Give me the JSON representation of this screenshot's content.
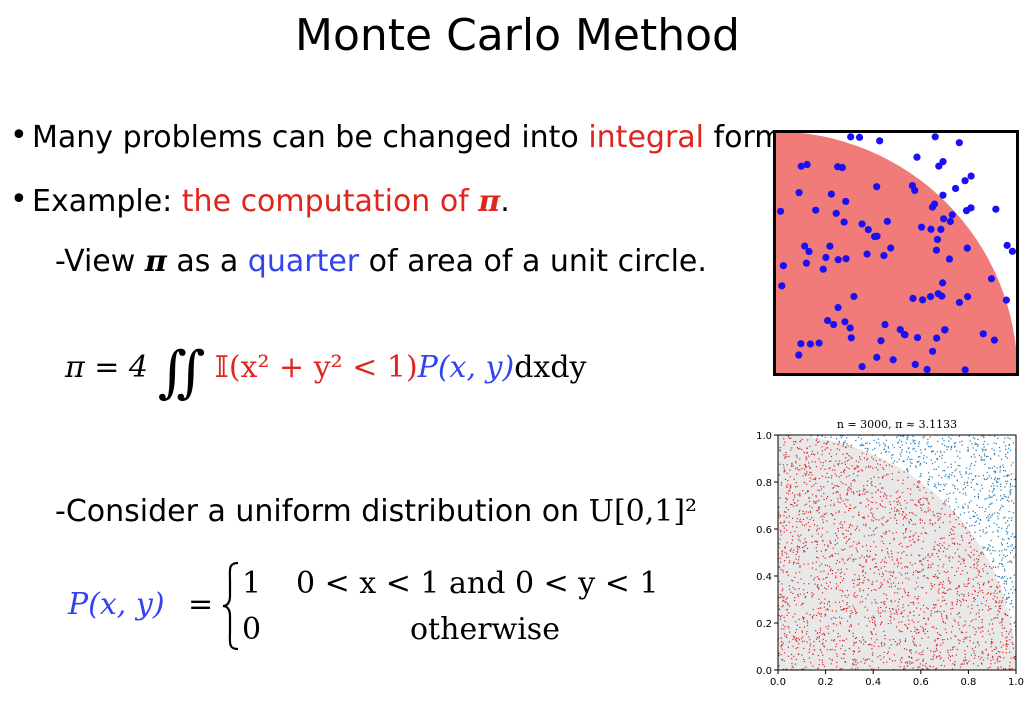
{
  "slide": {
    "title": "Monte Carlo Method",
    "bullet1": {
      "pre": "Many problems can be changed into ",
      "hl": "integral",
      "post": " form."
    },
    "bullet2": {
      "pre": "Example: ",
      "hl": "the computation of ",
      "pi": "π",
      "post": "."
    },
    "sub1": {
      "pre": "View ",
      "pi": "π",
      "mid": " as a ",
      "hl": "quarter",
      "post": " of area of a unit circle."
    },
    "eq1": {
      "lhs": "π = 4",
      "integral": "∬",
      "indicator": "𝕀(x² + y² < 1)",
      "density": "P(x, y)",
      "tail": "dxdy"
    },
    "sub2": {
      "text": "Consider a uniform distribution on ",
      "math": "U[0,1]²"
    },
    "eq2": {
      "lhs": "P(x, y)",
      "eq": "=",
      "case1_val": "1",
      "case1_cond": "0 < x < 1 and 0 < y < 1",
      "case2_val": "0",
      "case2_cond": "otherwise"
    }
  },
  "figure1": {
    "fill_color": "#f07b78",
    "dot_color": "#1a10f5",
    "frame_color": "#000000"
  },
  "chart_data": {
    "type": "scatter",
    "title": "n = 3000, π ≈ 3.1133",
    "xlim": [
      0,
      1
    ],
    "ylim": [
      0,
      1
    ],
    "xticks": [
      "0.0",
      "0.2",
      "0.4",
      "0.6",
      "0.8",
      "1.0"
    ],
    "yticks": [
      "0.0",
      "0.2",
      "0.4",
      "0.6",
      "0.8",
      "1.0"
    ],
    "n": 3000,
    "pi_estimate": 3.1133,
    "series": [
      {
        "color": "#d62728"
      },
      {
        "color": "#1f77b4"
      }
    ],
    "region_color": "#e8e8e8",
    "grid": false
  }
}
